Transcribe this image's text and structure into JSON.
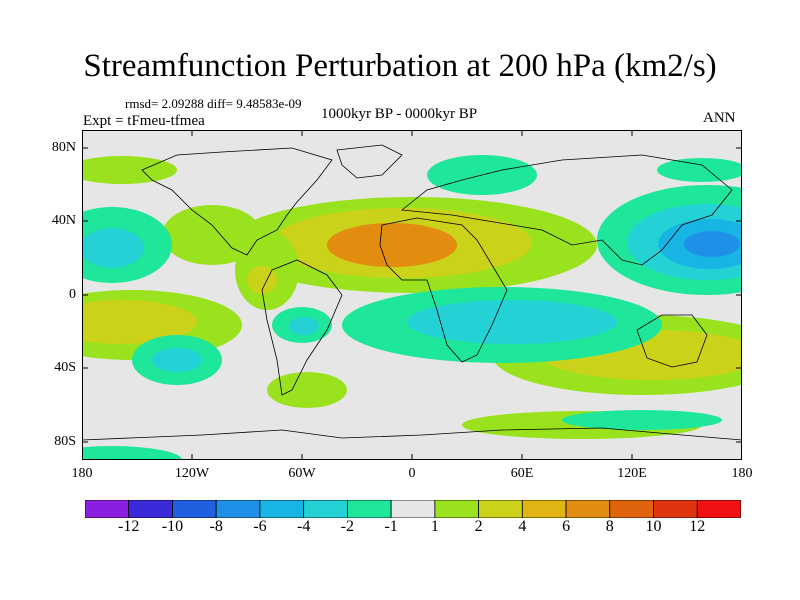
{
  "title": "Streamfunction Perturbation at 200 hPa (km2/s)",
  "stats": "rmsd= 2.09288 diff= 9.48583e-09",
  "experiment": "Expt = tFmeu-tfmea",
  "period": "1000kyr BP - 0000kyr BP",
  "season": "ANN",
  "lat_labels": [
    "80N",
    "40N",
    "0",
    "40S",
    "80S"
  ],
  "lon_labels": [
    "180",
    "120W",
    "60W",
    "0",
    "60E",
    "120E",
    "180"
  ],
  "colorbar": {
    "labels": [
      "-12",
      "-10",
      "-8",
      "-6",
      "-4",
      "-2",
      "-1",
      "1",
      "2",
      "4",
      "6",
      "8",
      "10",
      "12"
    ],
    "colors": [
      "#8a1fe0",
      "#3a2ad8",
      "#1f5fe0",
      "#1e90e8",
      "#18b4e4",
      "#24d2d6",
      "#1ee69a",
      "#e6e6e6",
      "#9ae21e",
      "#cbd21a",
      "#e0b412",
      "#e28c10",
      "#e0640e",
      "#e03410",
      "#f01212"
    ]
  },
  "colors": {
    "ocean_background": "#e6e6e6",
    "coastline": "#000000"
  }
}
